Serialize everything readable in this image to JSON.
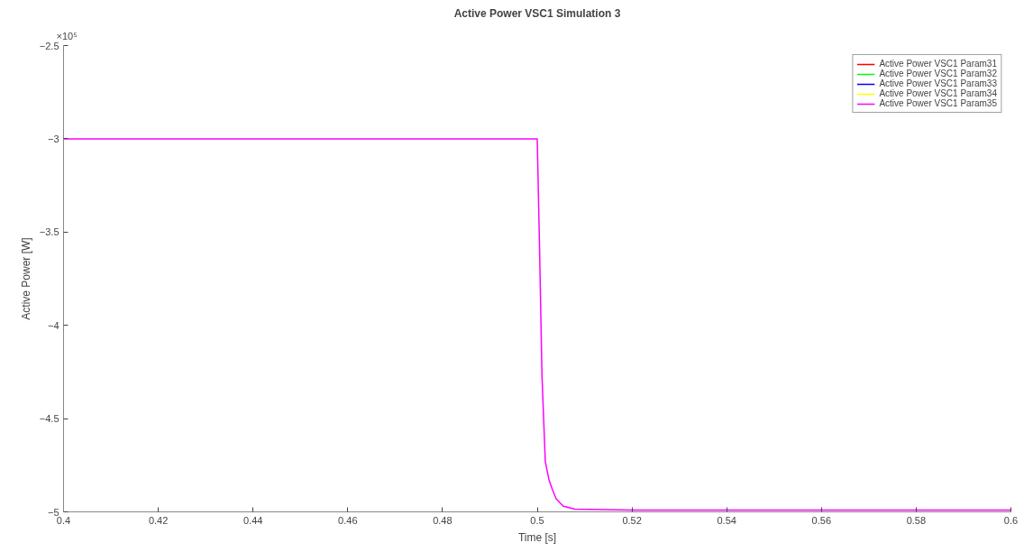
{
  "chart_data": {
    "type": "line",
    "title": "Active Power VSC1 Simulation 3",
    "xlabel": "Time [s]",
    "ylabel": "Active Power [W]",
    "annotations": [
      "×10⁵"
    ],
    "x": [
      0.4,
      0.5,
      0.5005,
      0.501,
      0.5017,
      0.5025,
      0.5032,
      0.504,
      0.5055,
      0.508,
      0.52,
      0.6
    ],
    "series": [
      {
        "name": "Active Power VSC1 Param31",
        "color": "#ff0000",
        "values": [
          null,
          null,
          null,
          null,
          null,
          null,
          null,
          null,
          null,
          null,
          null,
          null
        ]
      },
      {
        "name": "Active Power VSC1 Param32",
        "color": "#00ff00",
        "values": [
          null,
          null,
          null,
          null,
          null,
          null,
          null,
          null,
          null,
          null,
          null,
          null
        ]
      },
      {
        "name": "Active Power VSC1 Param33",
        "color": "#0000ff",
        "values": [
          null,
          null,
          null,
          null,
          null,
          null,
          null,
          null,
          null,
          null,
          null,
          null
        ]
      },
      {
        "name": "Active Power VSC1 Param34",
        "color": "#ffff00",
        "values": [
          null,
          null,
          null,
          null,
          null,
          null,
          null,
          null,
          null,
          null,
          null,
          null
        ]
      },
      {
        "name": "Active Power VSC1 Param35",
        "color": "#ff00ff",
        "values": [
          -3,
          -3,
          -3.6,
          -4.27,
          -4.73,
          -4.83,
          -4.88,
          -4.93,
          -4.97,
          -4.985,
          -4.99,
          -4.99
        ]
      }
    ],
    "xlim": [
      0.4,
      0.6
    ],
    "ylim": [
      -5,
      -2.5
    ],
    "xticks": [
      0.4,
      0.42,
      0.44,
      0.46,
      0.48,
      0.5,
      0.52,
      0.54,
      0.56,
      0.58,
      0.6
    ],
    "yticks": [
      -5,
      -4.5,
      -4,
      -3.5,
      -3,
      -2.5
    ],
    "grid": false,
    "legend": "top right",
    "marker": "none",
    "line_style": "solid"
  }
}
